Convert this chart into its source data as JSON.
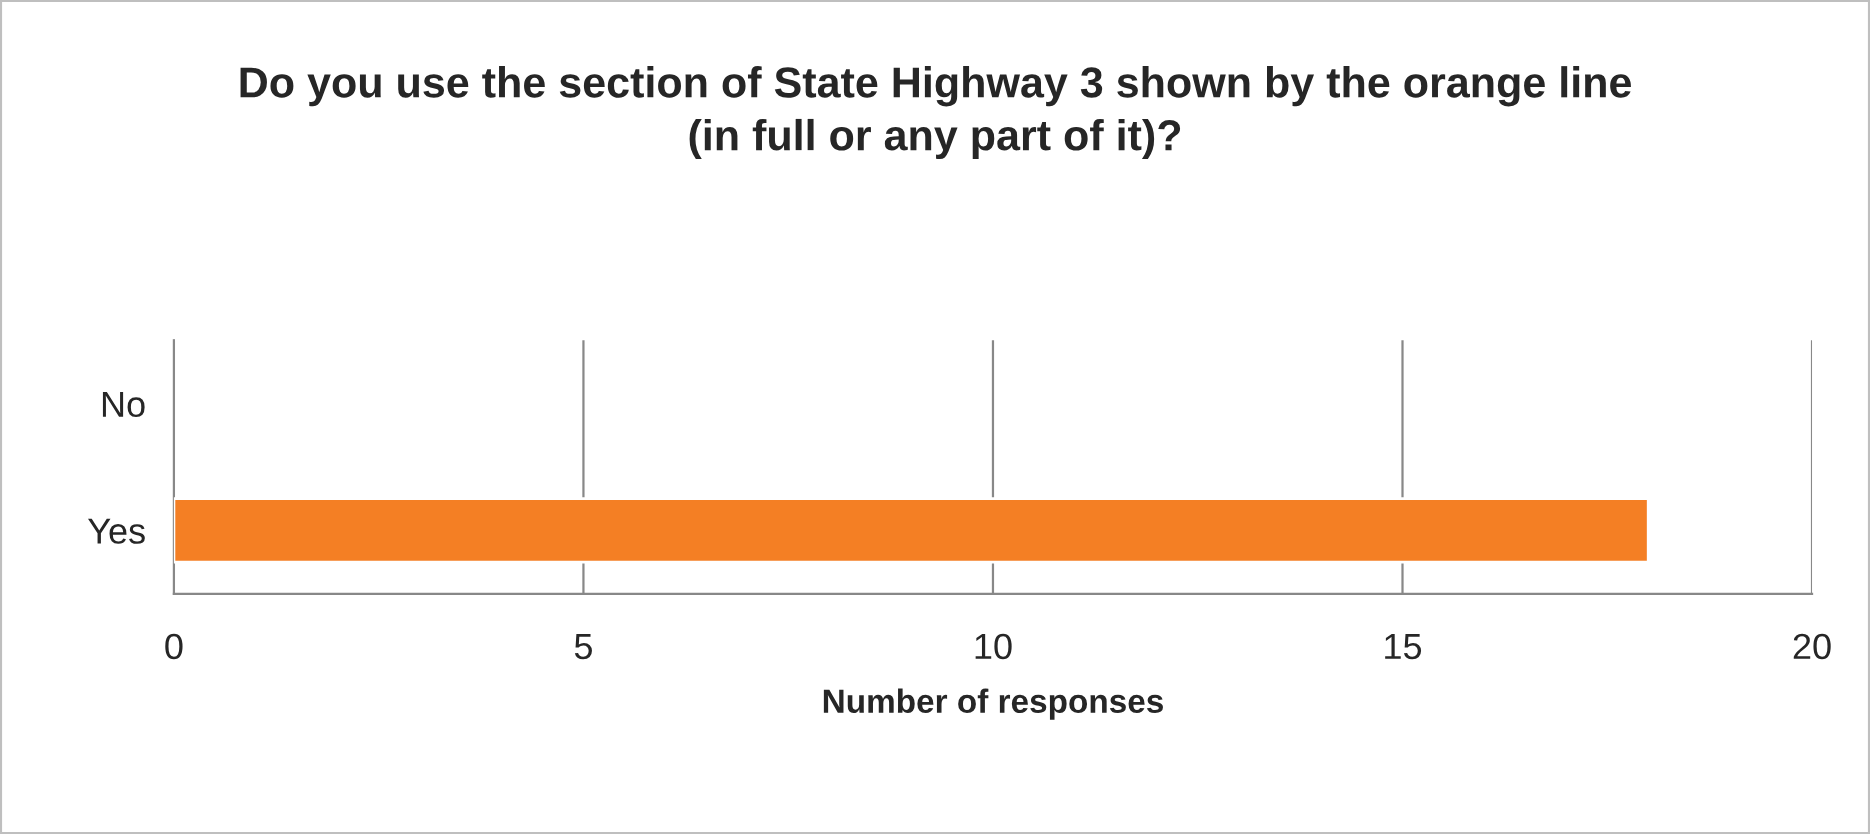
{
  "chart_data": {
    "type": "bar",
    "orientation": "horizontal",
    "title": "Do you use the section of State Highway 3 shown by the orange line (in full or any part of it)?",
    "xlabel": "Number of responses",
    "categories": [
      "No",
      "Yes"
    ],
    "values": [
      0,
      18
    ],
    "color": "#f47f24",
    "xlim": [
      0,
      20
    ],
    "xticks": [
      0,
      5,
      10,
      15,
      20
    ],
    "grid": "x",
    "legend": false
  }
}
